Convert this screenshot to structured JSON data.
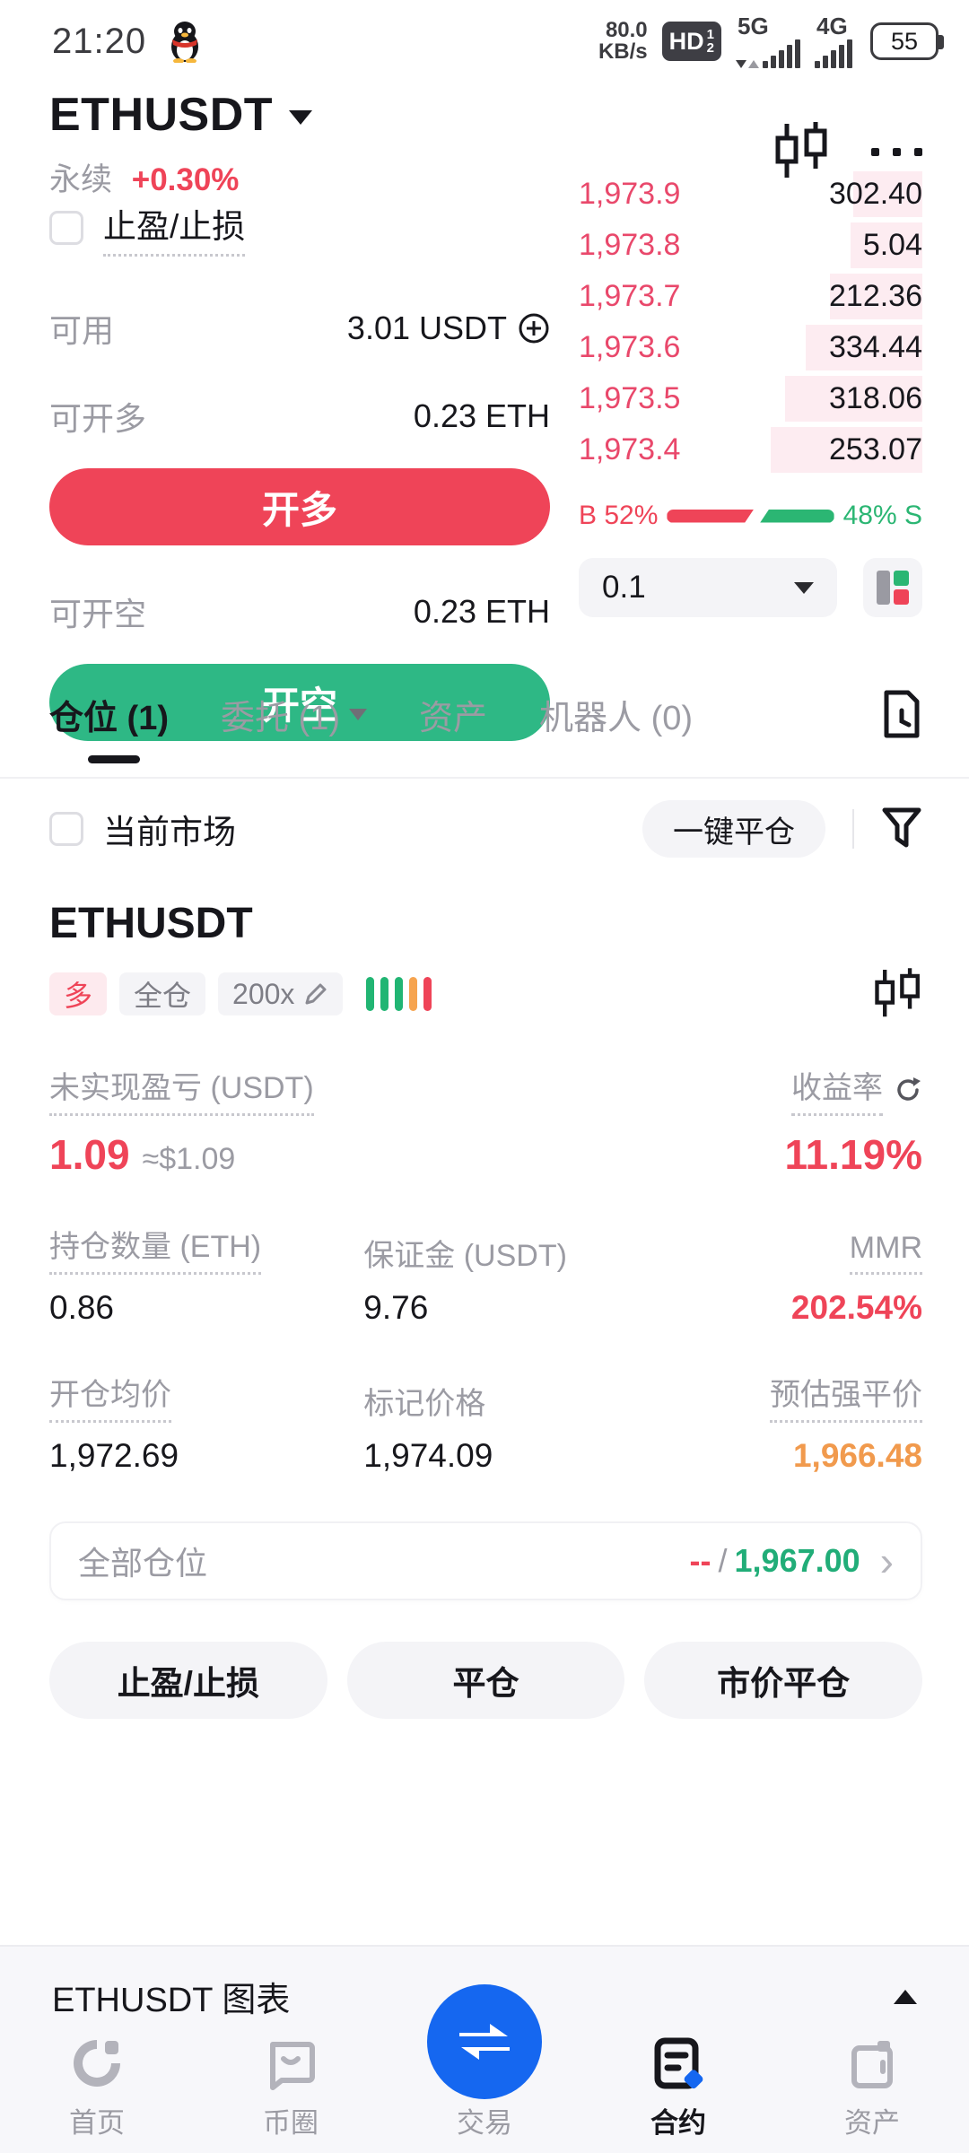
{
  "colors": {
    "red": "#ef4458",
    "green": "#2bb673",
    "orange": "#f19a4d",
    "blue": "#1567f0",
    "depth_pink": "#fdecf1",
    "badge_pink_bg": "#fdeaee",
    "gray_text": "#9b9ba3"
  },
  "status_bar": {
    "time": "21:20",
    "speed_value": "80.0",
    "speed_unit": "KB/s",
    "hd_label": "HD",
    "sim1": "1",
    "sim2": "2",
    "net1": "5G",
    "net2": "4G",
    "battery": "55"
  },
  "header": {
    "symbol": "ETHUSDT",
    "contract_type": "永续",
    "change": "+0.30%"
  },
  "trade_panel": {
    "tpsl_label": "止盈/止损",
    "available_label": "可用",
    "available_value": "3.01 USDT",
    "open_long_label": "可开多",
    "open_long_value": "0.23 ETH",
    "buy_button": "开多",
    "open_short_label": "可开空",
    "open_short_value": "0.23 ETH",
    "sell_button": "开空"
  },
  "orderbook": {
    "rows": [
      {
        "price": "1,973.9",
        "amount": "302.40",
        "depth": 20
      },
      {
        "price": "1,973.8",
        "amount": "5.04",
        "depth": 21
      },
      {
        "price": "1,973.7",
        "amount": "212.36",
        "depth": 27
      },
      {
        "price": "1,973.6",
        "amount": "334.44",
        "depth": 34
      },
      {
        "price": "1,973.5",
        "amount": "318.06",
        "depth": 40
      },
      {
        "price": "1,973.4",
        "amount": "253.07",
        "depth": 44
      }
    ],
    "buy_pct": 52,
    "buy_label": "B 52%",
    "sell_label": "48% S",
    "tick": "0.1"
  },
  "tabs": {
    "positions": "仓位 (1)",
    "orders": "委托 (1)",
    "assets": "资产",
    "bots": "机器人 (0)"
  },
  "filter_row": {
    "market": "当前市场",
    "close_all": "一键平仓"
  },
  "position": {
    "symbol": "ETHUSDT",
    "side_badge": "多",
    "margin_mode": "全仓",
    "leverage": "200x",
    "pnl_label": "未实现盈亏 (USDT)",
    "pnl_value": "1.09",
    "pnl_approx": "≈$1.09",
    "roe_label": "收益率",
    "roe_value": "11.19%",
    "size_label": "持仓数量 (ETH)",
    "size_value": "0.86",
    "margin_label": "保证金 (USDT)",
    "margin_value": "9.76",
    "mmr_label": "MMR",
    "mmr_value": "202.54%",
    "entry_label": "开仓均价",
    "entry_value": "1,972.69",
    "mark_label": "标记价格",
    "mark_value": "1,974.09",
    "liq_label": "预估强平价",
    "liq_value": "1,966.48",
    "all_pos_label": "全部仓位",
    "all_pos_dash": "--",
    "all_pos_sep": "/",
    "all_pos_value": "1,967.00",
    "actions": {
      "a0": "止盈/止损",
      "a1": "平仓",
      "a2": "市价平仓"
    }
  },
  "chart_bar": {
    "label": "ETHUSDT 图表"
  },
  "bottom_nav": {
    "home": "首页",
    "coins": "币圈",
    "trade": "交易",
    "futures": "合约",
    "assets": "资产"
  }
}
